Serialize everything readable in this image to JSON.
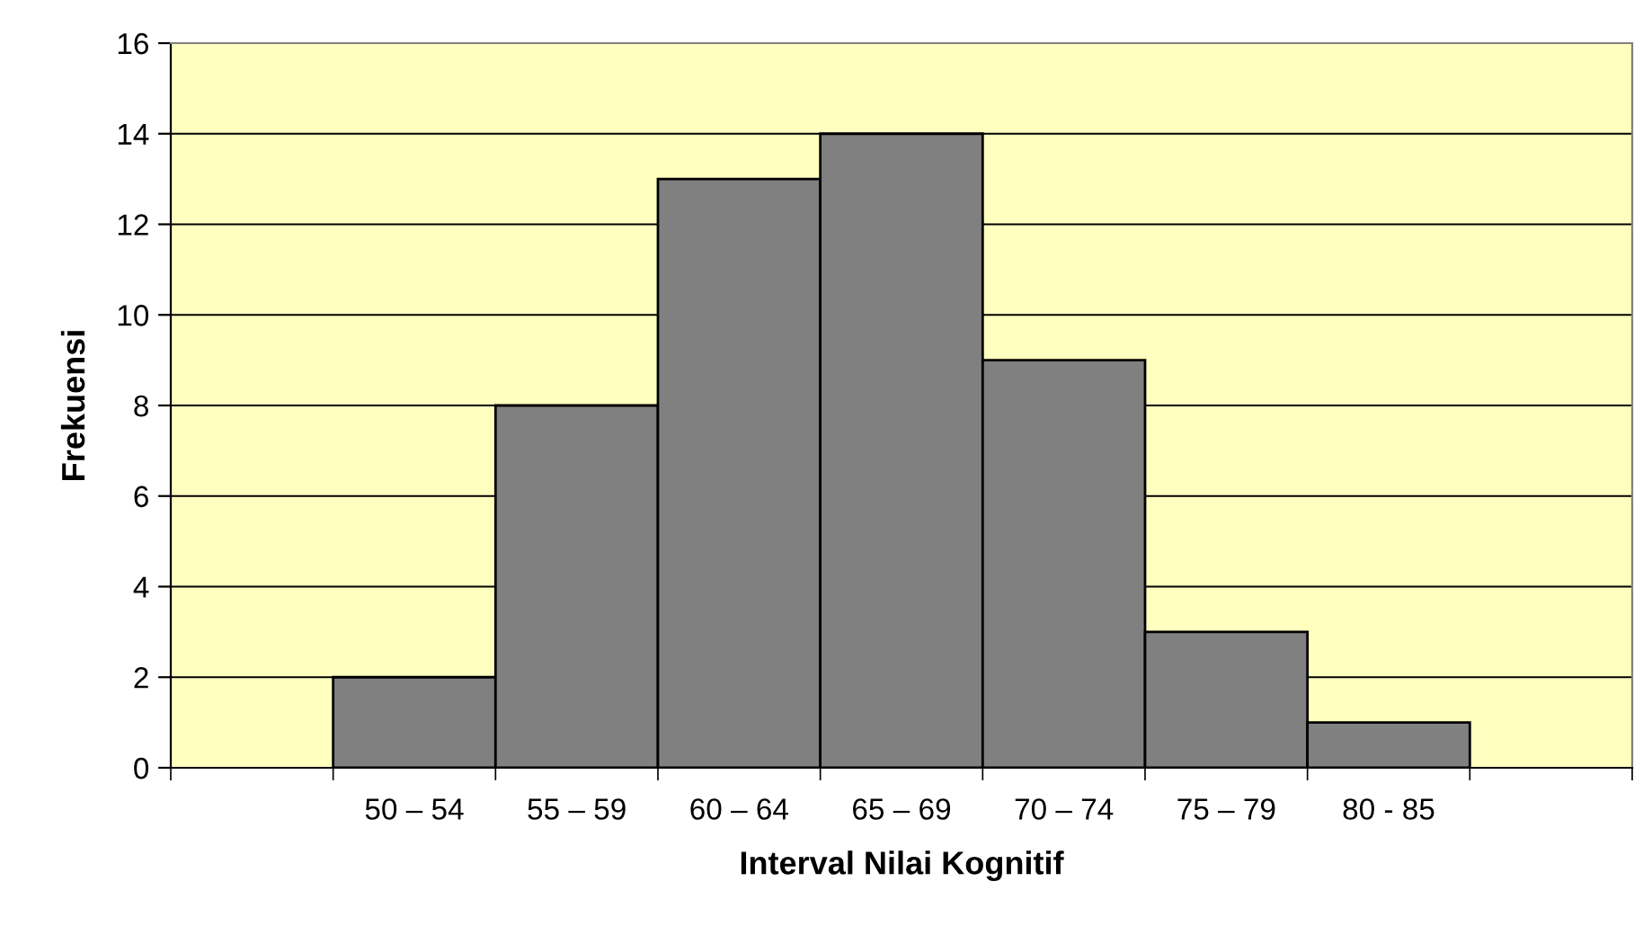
{
  "chart_data": {
    "type": "bar",
    "xlabel": "Interval Nilai Kognitif",
    "ylabel": "Frekuensi",
    "categories": [
      null,
      "50 – 54",
      "55 – 59",
      "60 – 64",
      "65 – 69",
      "70 – 74",
      "75 – 79",
      "80 - 85",
      null
    ],
    "values": [
      null,
      2,
      8,
      13,
      14,
      9,
      3,
      1,
      null
    ],
    "color": "#808080",
    "ylim": [
      0,
      16
    ],
    "yticks": [
      0,
      2,
      4,
      6,
      8,
      10,
      12,
      14,
      16
    ],
    "grid": "y",
    "legend": false
  }
}
